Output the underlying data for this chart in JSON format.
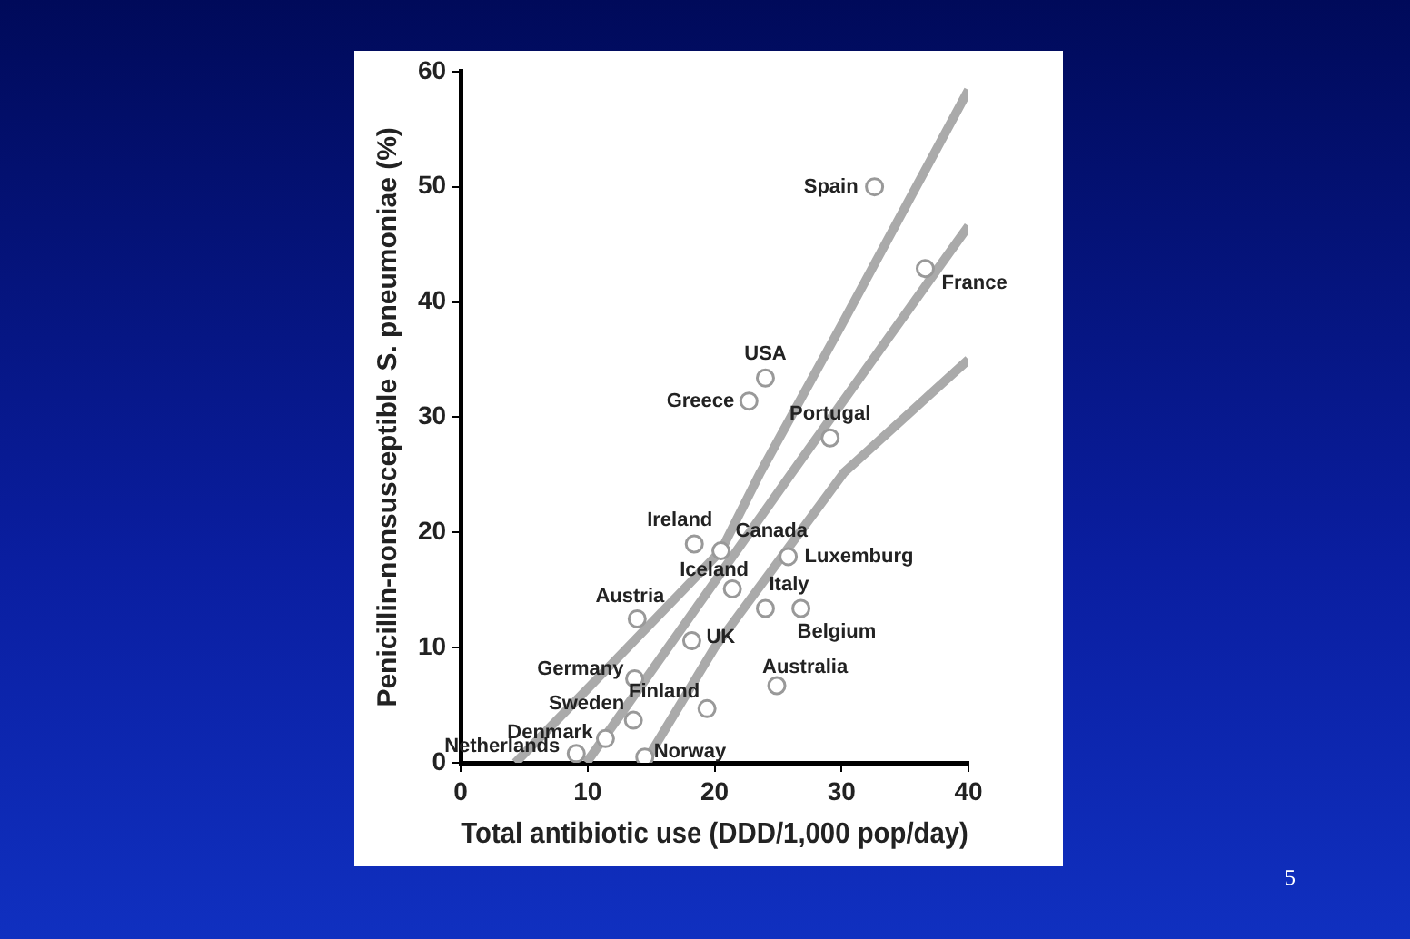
{
  "chart_data": {
    "type": "scatter",
    "xlabel": "Total antibiotic use (DDD/1,000 pop/day)",
    "ylabel": "Penicillin-nonsusceptible S. pneumoniae (%)",
    "xlim": [
      0,
      40
    ],
    "xticks": [
      0,
      10,
      20,
      30,
      40
    ],
    "ylim": [
      0,
      60
    ],
    "yticks": [
      0,
      10,
      20,
      30,
      40,
      50,
      60
    ],
    "grid": false,
    "legend": false,
    "marker": "circle",
    "series": [
      {
        "type": "scatter",
        "color": "#999999",
        "x": [
          32.6,
          36.6,
          24.0,
          22.7,
          29.1,
          18.4,
          20.5,
          25.8,
          21.4,
          24.0,
          26.8,
          13.9,
          18.2,
          13.7,
          24.9,
          19.4,
          13.6,
          11.4,
          9.1,
          14.5
        ],
        "values": [
          50.0,
          42.9,
          33.4,
          31.4,
          28.2,
          19.0,
          18.4,
          17.9,
          15.1,
          13.4,
          13.4,
          12.5,
          10.6,
          7.3,
          6.7,
          4.7,
          3.7,
          2.1,
          0.8,
          0.5
        ]
      },
      {
        "type": "line",
        "marker": "none",
        "color": "#aaaaaa",
        "x": [
          4.3,
          12,
          20.5,
          23.6,
          30,
          40
        ],
        "values": [
          0,
          8.7,
          18.4,
          25.2,
          38,
          58.4
        ]
      },
      {
        "type": "line",
        "marker": "none",
        "color": "#aaaaaa",
        "x": [
          9.9,
          26.1,
          40
        ],
        "values": [
          0,
          25.2,
          46.6
        ]
      },
      {
        "type": "line",
        "marker": "none",
        "color": "#aaaaaa",
        "x": [
          14.5,
          20,
          30.2,
          40
        ],
        "values": [
          0,
          10,
          25.2,
          35
        ]
      }
    ],
    "annotations": [
      {
        "text": "Spain",
        "x": 32.6,
        "y": 50.0
      },
      {
        "text": "France",
        "x": 36.6,
        "y": 42.9
      },
      {
        "text": "USA",
        "x": 24.0,
        "y": 33.4
      },
      {
        "text": "Greece",
        "x": 22.7,
        "y": 31.4
      },
      {
        "text": "Portugal",
        "x": 29.1,
        "y": 28.2
      },
      {
        "text": "Ireland",
        "x": 18.4,
        "y": 19.0
      },
      {
        "text": "Canada",
        "x": 20.5,
        "y": 18.4
      },
      {
        "text": "Luxemburg",
        "x": 25.8,
        "y": 17.9
      },
      {
        "text": "Iceland",
        "x": 21.4,
        "y": 15.1
      },
      {
        "text": "Italy",
        "x": 24.0,
        "y": 13.4
      },
      {
        "text": "Belgium",
        "x": 26.8,
        "y": 13.4
      },
      {
        "text": "Austria",
        "x": 13.9,
        "y": 12.5
      },
      {
        "text": "UK",
        "x": 18.2,
        "y": 10.6
      },
      {
        "text": "Germany",
        "x": 13.7,
        "y": 7.3
      },
      {
        "text": "Australia",
        "x": 24.9,
        "y": 6.7
      },
      {
        "text": "Finland",
        "x": 19.4,
        "y": 4.7
      },
      {
        "text": "Sweden",
        "x": 13.6,
        "y": 3.7
      },
      {
        "text": "Denmark",
        "x": 11.4,
        "y": 2.1
      },
      {
        "text": "Netherlands",
        "x": 9.1,
        "y": 0.8
      },
      {
        "text": "Norway",
        "x": 14.5,
        "y": 0.5
      },
      "5"
    ]
  }
}
